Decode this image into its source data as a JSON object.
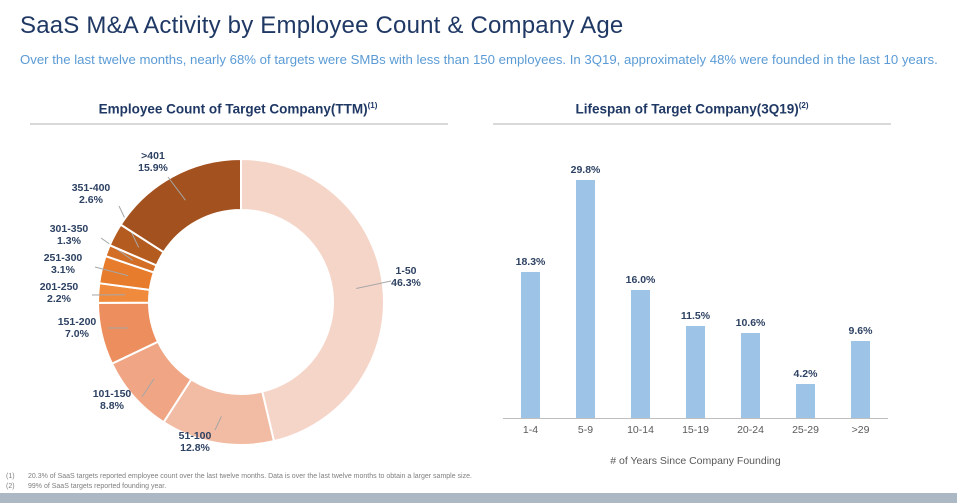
{
  "slide": {
    "title": "SaaS M&A Activity by Employee Count & Company Age",
    "subtitle": "Over the last twelve months, nearly 68% of targets were SMBs with less than 150 employees. In 3Q19, approximately 48% were founded in the last 10 years.",
    "title_color": "#1F3864",
    "subtitle_color": "#5B9BD5",
    "bottom_stripe_color": "#ACB8C4"
  },
  "chart_data": [
    {
      "type": "pie",
      "donut": true,
      "title": "Employee Count of Target Company(TTM)",
      "sup": "(1)",
      "start": "12 o'clock, clockwise",
      "legend_position": "none",
      "slices": [
        {
          "label": "1-50",
          "pct": "46.3%",
          "value": 46.3,
          "color": "#F6D5C9"
        },
        {
          "label": "51-100",
          "pct": "12.8%",
          "value": 12.8,
          "color": "#F2BCA4"
        },
        {
          "label": "101-150",
          "pct": "8.8%",
          "value": 8.8,
          "color": "#F0A685"
        },
        {
          "label": "151-200",
          "pct": "7.0%",
          "value": 7.0,
          "color": "#EC8E5D"
        },
        {
          "label": "201-250",
          "pct": "2.2%",
          "value": 2.2,
          "color": "#F08B3E"
        },
        {
          "label": "251-300",
          "pct": "3.1%",
          "value": 3.1,
          "color": "#E67C2C"
        },
        {
          "label": "301-350",
          "pct": "1.3%",
          "value": 1.3,
          "color": "#D26E26"
        },
        {
          "label": "351-400",
          "pct": "2.6%",
          "value": 2.6,
          "color": "#B45B1F"
        },
        {
          "label": ">401",
          "pct": "15.9%",
          "value": 15.9,
          "color": "#A3511E"
        }
      ],
      "leader_line_color": "#A6A6A6",
      "slice_gap_color": "#FFFFFF"
    },
    {
      "type": "bar",
      "title": "Lifespan of Target Company(3Q19)",
      "sup": "(2)",
      "categories": [
        "1-4",
        "5-9",
        "10-14",
        "15-19",
        "20-24",
        "25-29",
        ">29"
      ],
      "values": [
        18.3,
        29.8,
        16.0,
        11.5,
        10.6,
        4.2,
        9.6
      ],
      "value_labels": [
        "18.3%",
        "29.8%",
        "16.0%",
        "11.5%",
        "10.6%",
        "4.2%",
        "9.6%"
      ],
      "xlabel": "# of Years Since Company Founding",
      "ylim": [
        0,
        31
      ],
      "grid": false,
      "legend_position": "none",
      "bar_color": "#9DC3E6",
      "axis_color": "#BFBFBF"
    }
  ],
  "footnotes": [
    {
      "num": "(1)",
      "text": "20.3% of SaaS targets reported employee count over the last twelve months. Data is over the last twelve months to obtain a larger sample size."
    },
    {
      "num": "(2)",
      "text": "99% of SaaS targets reported founding year."
    }
  ]
}
